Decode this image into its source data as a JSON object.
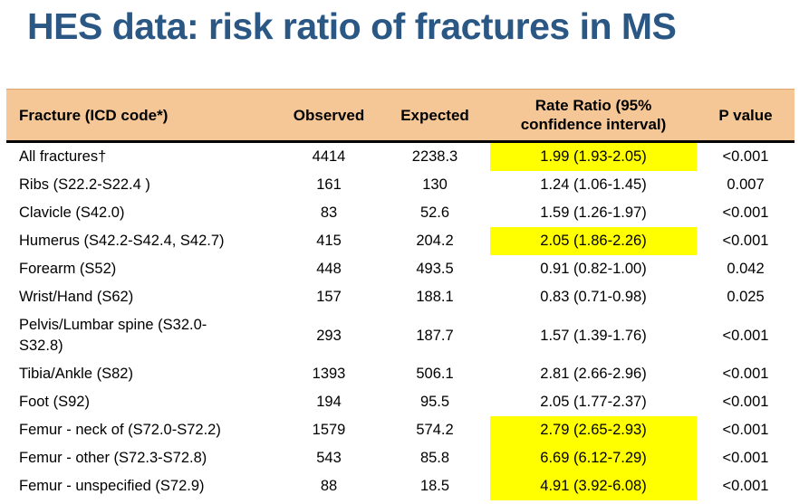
{
  "title": "HES data: risk ratio of fractures in MS",
  "table": {
    "columns": [
      "Fracture (ICD code*)",
      "Observed",
      "Expected",
      "Rate Ratio (95% confidence interval)",
      "P value"
    ],
    "rows": [
      {
        "fracture": "All fractures†",
        "observed": "4414",
        "expected": "2238.3",
        "rate_ratio": "1.99 (1.93-2.05)",
        "p_value": "<0.001",
        "highlight": true
      },
      {
        "fracture": "Ribs (S22.2-S22.4 )",
        "observed": "161",
        "expected": "130",
        "rate_ratio": "1.24 (1.06-1.45)",
        "p_value": "0.007",
        "highlight": false
      },
      {
        "fracture": "Clavicle (S42.0)",
        "observed": "83",
        "expected": "52.6",
        "rate_ratio": "1.59 (1.26-1.97)",
        "p_value": "<0.001",
        "highlight": false
      },
      {
        "fracture": "Humerus (S42.2-S42.4, S42.7)",
        "observed": "415",
        "expected": "204.2",
        "rate_ratio": "2.05 (1.86-2.26)",
        "p_value": "<0.001",
        "highlight": true
      },
      {
        "fracture": "Forearm (S52)",
        "observed": "448",
        "expected": "493.5",
        "rate_ratio": "0.91 (0.82-1.00)",
        "p_value": "0.042",
        "highlight": false
      },
      {
        "fracture": "Wrist/Hand (S62)",
        "observed": "157",
        "expected": "188.1",
        "rate_ratio": "0.83 (0.71-0.98)",
        "p_value": "0.025",
        "highlight": false
      },
      {
        "fracture": "Pelvis/Lumbar spine (S32.0-S32.8)",
        "observed": "293",
        "expected": "187.7",
        "rate_ratio": "1.57 (1.39-1.76)",
        "p_value": "<0.001",
        "highlight": false
      },
      {
        "fracture": "Tibia/Ankle (S82)",
        "observed": "1393",
        "expected": "506.1",
        "rate_ratio": "2.81 (2.66-2.96)",
        "p_value": "<0.001",
        "highlight": false
      },
      {
        "fracture": "Foot (S92)",
        "observed": "194",
        "expected": "95.5",
        "rate_ratio": "2.05 (1.77-2.37)",
        "p_value": "<0.001",
        "highlight": false
      },
      {
        "fracture": "Femur - neck of (S72.0-S72.2)",
        "observed": "1579",
        "expected": "574.2",
        "rate_ratio": "2.79 (2.65-2.93)",
        "p_value": "<0.001",
        "highlight": true
      },
      {
        "fracture": "Femur - other (S72.3-S72.8)",
        "observed": "543",
        "expected": "85.8",
        "rate_ratio": "6.69 (6.12-7.29)",
        "p_value": "<0.001",
        "highlight": true
      },
      {
        "fracture": "Femur - unspecified (S72.9)",
        "observed": "88",
        "expected": "18.5",
        "rate_ratio": "4.91 (3.92-6.08)",
        "p_value": "<0.001",
        "highlight": true
      }
    ]
  },
  "colors": {
    "title": "#2A5783",
    "header_bg": "#F6C796",
    "header_rule": "#000000",
    "highlight": "#FFFF00"
  }
}
